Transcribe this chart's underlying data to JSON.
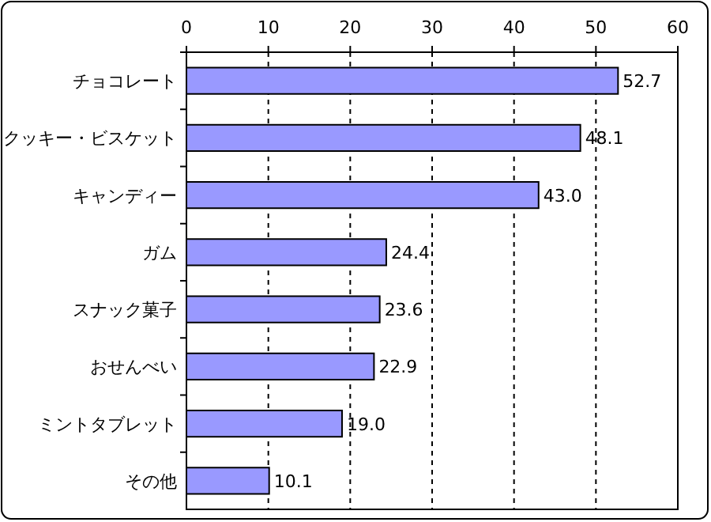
{
  "chart_data": {
    "type": "bar",
    "orientation": "horizontal",
    "categories": [
      "チョコレート",
      "クッキー・ビスケット",
      "キャンディー",
      "ガム",
      "スナック菓子",
      "おせんべい",
      "ミントタブレット",
      "その他"
    ],
    "values": [
      52.7,
      48.1,
      43.0,
      24.4,
      23.6,
      22.9,
      19.0,
      10.1
    ],
    "value_labels": [
      "52.7",
      "48.1",
      "43.0",
      "24.4",
      "23.6",
      "22.9",
      "19.0",
      "10.1"
    ],
    "color": "#9999ff",
    "xlim": [
      0,
      60
    ],
    "xticks": [
      0,
      10,
      20,
      30,
      40,
      50,
      60
    ],
    "grid": "x"
  }
}
